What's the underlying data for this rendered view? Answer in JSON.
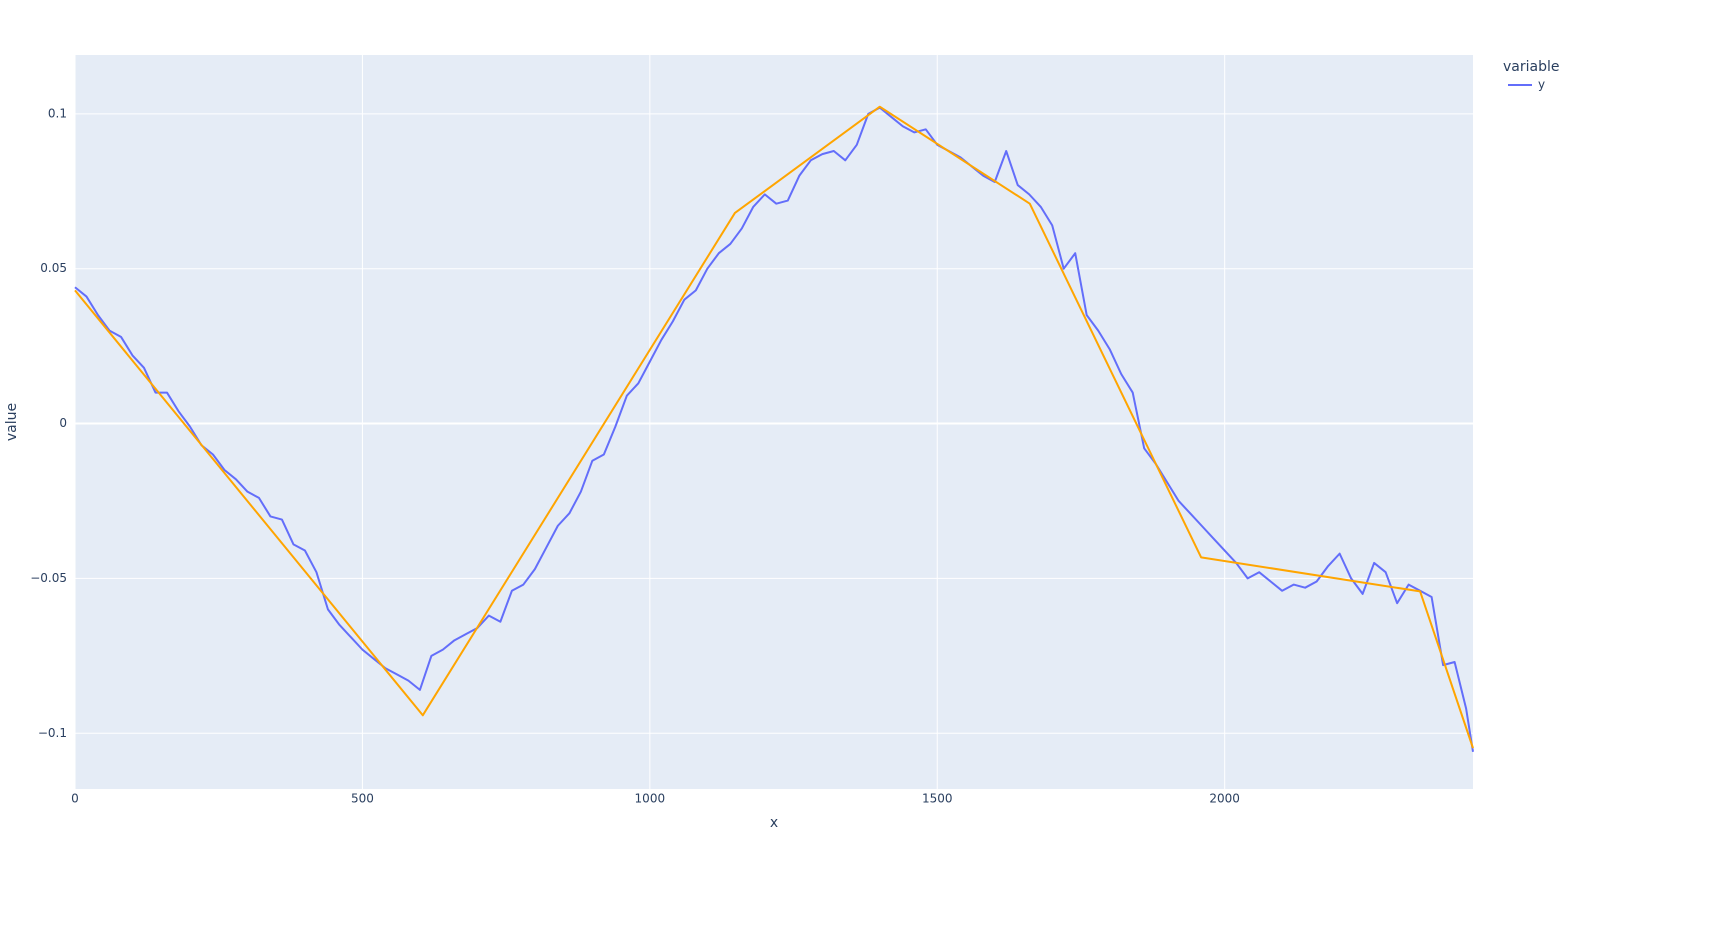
{
  "chart_data": {
    "type": "line",
    "xlabel": "x",
    "ylabel": "value",
    "legend_title": "variable",
    "legend": "top-right outside",
    "grid": true,
    "xlim": [
      0,
      2432
    ],
    "xticks": [
      0,
      500,
      1000,
      1500,
      2000
    ],
    "ylim": [
      -0.118,
      0.119
    ],
    "yticks": [
      {
        "value": -0.1,
        "label": "−0.1"
      },
      {
        "value": -0.05,
        "label": "−0.05"
      },
      0,
      0.05,
      0.1
    ],
    "series": [
      {
        "name": "y",
        "color": "#636efa",
        "x": [
          0,
          20,
          40,
          60,
          80,
          100,
          120,
          140,
          160,
          180,
          200,
          220,
          240,
          260,
          280,
          300,
          320,
          340,
          360,
          380,
          400,
          420,
          440,
          460,
          480,
          500,
          520,
          540,
          560,
          580,
          600,
          620,
          640,
          660,
          680,
          700,
          720,
          740,
          760,
          780,
          800,
          820,
          840,
          860,
          880,
          900,
          920,
          940,
          960,
          980,
          1000,
          1020,
          1040,
          1060,
          1080,
          1100,
          1120,
          1140,
          1160,
          1180,
          1200,
          1220,
          1240,
          1260,
          1280,
          1300,
          1320,
          1340,
          1360,
          1380,
          1400,
          1420,
          1440,
          1460,
          1480,
          1500,
          1520,
          1540,
          1560,
          1580,
          1600,
          1620,
          1640,
          1660,
          1680,
          1700,
          1720,
          1740,
          1760,
          1780,
          1800,
          1820,
          1840,
          1860,
          1880,
          1900,
          1920,
          1940,
          1960,
          1980,
          2000,
          2020,
          2040,
          2060,
          2080,
          2100,
          2120,
          2140,
          2160,
          2180,
          2200,
          2220,
          2240,
          2260,
          2280,
          2300,
          2320,
          2340,
          2360,
          2380,
          2400,
          2420,
          2432
        ],
        "values": [
          0.044,
          0.041,
          0.035,
          0.03,
          0.028,
          0.022,
          0.018,
          0.01,
          0.01,
          0.004,
          -0.001,
          -0.007,
          -0.01,
          -0.015,
          -0.018,
          -0.022,
          -0.024,
          -0.03,
          -0.031,
          -0.039,
          -0.041,
          -0.048,
          -0.06,
          -0.065,
          -0.069,
          -0.073,
          -0.076,
          -0.079,
          -0.081,
          -0.083,
          -0.086,
          -0.075,
          -0.073,
          -0.07,
          -0.068,
          -0.066,
          -0.062,
          -0.064,
          -0.054,
          -0.052,
          -0.047,
          -0.04,
          -0.033,
          -0.029,
          -0.022,
          -0.012,
          -0.01,
          -0.001,
          0.009,
          0.013,
          0.02,
          0.027,
          0.033,
          0.04,
          0.043,
          0.05,
          0.055,
          0.058,
          0.063,
          0.07,
          0.074,
          0.071,
          0.072,
          0.08,
          0.085,
          0.087,
          0.088,
          0.085,
          0.09,
          0.1,
          0.102,
          0.099,
          0.096,
          0.094,
          0.095,
          0.09,
          0.088,
          0.086,
          0.083,
          0.08,
          0.078,
          0.088,
          0.077,
          0.074,
          0.07,
          0.064,
          0.05,
          0.055,
          0.035,
          0.03,
          0.024,
          0.016,
          0.01,
          -0.008,
          -0.013,
          -0.019,
          -0.025,
          -0.029,
          -0.033,
          -0.037,
          -0.041,
          -0.045,
          -0.05,
          -0.048,
          -0.051,
          -0.054,
          -0.052,
          -0.053,
          -0.051,
          -0.046,
          -0.042,
          -0.05,
          -0.055,
          -0.045,
          -0.048,
          -0.058,
          -0.052,
          -0.054,
          -0.056,
          -0.078,
          -0.077,
          -0.092,
          -0.106
        ]
      },
      {
        "color": "orange",
        "x": [
          0,
          605,
          1148,
          1400,
          1661,
          1959,
          2340,
          2432
        ],
        "values": [
          0.043,
          -0.0942,
          0.068,
          0.1023,
          0.071,
          -0.0432,
          -0.0542,
          -0.1048
        ]
      }
    ]
  }
}
